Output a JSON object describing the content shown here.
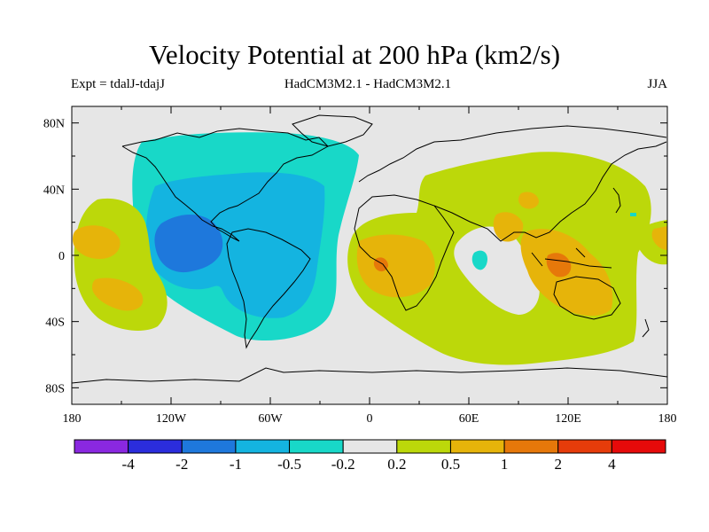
{
  "title": "Velocity Potential at 200 hPa (km2/s)",
  "subtitle_left": "Expt = tdalJ-tdajJ",
  "subtitle_center": "HadCM3M2.1 - HadCM3M2.1",
  "subtitle_right": "JJA",
  "chart_data": {
    "type": "map-contour",
    "variable": "Velocity Potential at 200 hPa",
    "units": "km2/s",
    "experiment": "tdalJ-tdajJ",
    "models": "HadCM3M2.1 - HadCM3M2.1",
    "season": "JJA",
    "lon_range": [
      -180,
      180
    ],
    "lat_range": [
      -90,
      90
    ],
    "lon_ticks": [
      "180",
      "120W",
      "60W",
      "0",
      "60E",
      "120E",
      "180"
    ],
    "lat_ticks": [
      "80N",
      "40N",
      "0",
      "40S",
      "80S"
    ],
    "colorbar_levels": [
      "-4",
      "-2",
      "-1",
      "-0.5",
      "-0.2",
      "0.2",
      "0.5",
      "1",
      "2",
      "4"
    ],
    "colorbar_colors": [
      "#8a28e0",
      "#2b2ddc",
      "#1e78dc",
      "#14b4e0",
      "#18d8c8",
      "#e6e6e6",
      "#bcd80a",
      "#e6b40a",
      "#e6780a",
      "#e63c0a",
      "#e60a0a"
    ],
    "regions": [
      {
        "name": "Americas / Atlantic negative",
        "range": "-0.2 to -1",
        "min_level": "-1"
      },
      {
        "name": "Africa / Indian / Asia / Australia positive",
        "range": "0.2 to 1",
        "max_level": "1"
      },
      {
        "name": "Central Pacific positive",
        "range": "0.2 to 1"
      }
    ]
  }
}
